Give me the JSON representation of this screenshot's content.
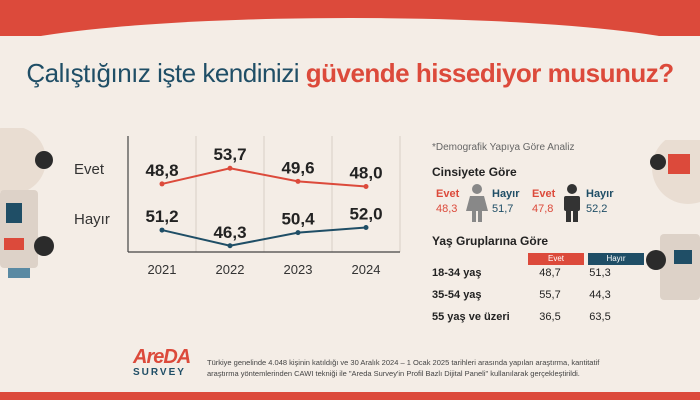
{
  "title": {
    "part1": "Çalıştığınız işte kendinizi ",
    "part2": "güvende hissediyor musunuz?"
  },
  "colors": {
    "evet": "#dc4a3b",
    "hayir": "#1f4e66",
    "accent": "#dc4a3b"
  },
  "chart_data": {
    "type": "line",
    "categories": [
      "2021",
      "2022",
      "2023",
      "2024"
    ],
    "series": [
      {
        "name": "Evet",
        "values": [
          48.8,
          53.7,
          49.6,
          48.0
        ],
        "labels": [
          "48,8",
          "53,7",
          "49,6",
          "48,0"
        ]
      },
      {
        "name": "Hayır",
        "values": [
          51.2,
          46.3,
          50.4,
          52.0
        ],
        "labels": [
          "51,2",
          "46,3",
          "50,4",
          "52,0"
        ]
      }
    ],
    "grid": true
  },
  "side": {
    "title": "*Demografik Yapıya Göre Analiz",
    "gender": {
      "heading": "Cinsiyete Göre",
      "female": {
        "evet_label": "Evet",
        "evet_value": "48,3",
        "hayir_label": "Hayır",
        "hayir_value": "51,7",
        "icon": "female-icon"
      },
      "male": {
        "evet_label": "Evet",
        "evet_value": "47,8",
        "hayir_label": "Hayır",
        "hayir_value": "52,2",
        "icon": "male-icon"
      }
    },
    "age": {
      "heading": "Yaş Gruplarına Göre",
      "col_evet": "Evet",
      "col_hayir": "Hayır",
      "rows": [
        {
          "label": "18-34 yaş",
          "evet": "48,7",
          "hayir": "51,3"
        },
        {
          "label": "35-54 yaş",
          "evet": "55,7",
          "hayir": "44,3"
        },
        {
          "label": "55 yaş ve üzeri",
          "evet": "36,5",
          "hayir": "63,5"
        }
      ]
    }
  },
  "logo": {
    "brand": "AreDA",
    "sub": "SURVEY"
  },
  "footnote": "Türkiye genelinde 4.048 kişinin katıldığı ve 30 Aralık 2024 – 1 Ocak 2025 tarihleri arasında yapılan araştırma, kantitatif araştırma yöntemlerinden CAWI tekniği ile \"Areda Survey'in Profil Bazlı Dijital Paneli\" kullanılarak gerçekleştirildi."
}
